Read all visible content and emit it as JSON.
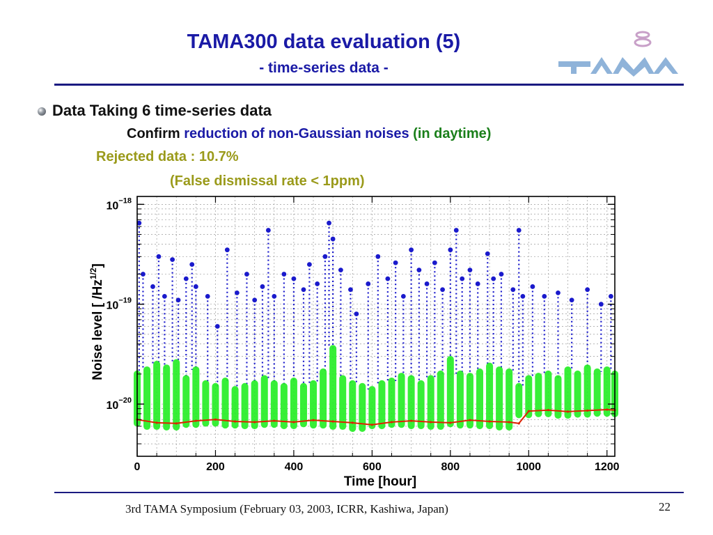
{
  "slide": {
    "title": "TAMA300 data evaluation (5)",
    "subtitle": "- time-series data -",
    "bullet": "Data Taking 6 time-series data",
    "line1": {
      "a": "Confirm ",
      "b": "reduction of non-Gaussian noises ",
      "c": "(in daytime)"
    },
    "line2": "Rejected data : 10.7%",
    "line3": "(False dismissal rate < 1ppm)",
    "footer": "3rd TAMA Symposium (February 03, 2003, ICRR, Kashiwa, Japan)",
    "page_number": "22"
  },
  "colors": {
    "title": "#1a1aa6",
    "accent_green": "#1a7f1a",
    "accent_olive": "#9a9a1a",
    "points_blue": "#1a1acc",
    "points_green": "#22ee22",
    "floor_red": "#dd2200",
    "logo_blue": "#8fb3d9",
    "logo_ring": "#c8a0c8"
  },
  "chart_data": {
    "type": "scatter",
    "title": "",
    "xlabel": "Time  [hour]",
    "ylabel": "Noise level  [ /Hz^1/2 ]",
    "ylabel_parts": {
      "pre": "Noise level  [ /Hz",
      "sup": "1/2",
      "post": "]"
    },
    "xlim": [
      0,
      1220
    ],
    "ylim": [
      3e-21,
      1.2e-18
    ],
    "yscale": "log",
    "grid": true,
    "x_ticks": [
      0,
      200,
      400,
      600,
      800,
      1000,
      1200
    ],
    "x_tick_labels": [
      "0",
      "200",
      "400",
      "600",
      "800",
      "1000",
      "1200"
    ],
    "y_ticks": [
      {
        "value": 1e-18,
        "exp": "−18"
      },
      {
        "value": 1e-19,
        "exp": "−19"
      },
      {
        "value": 1e-20,
        "exp": "−20"
      }
    ],
    "y_tick_base": "10",
    "series": [
      {
        "color": "#dd2200",
        "note_values": "lowest noise floor",
        "x": [
          0,
          50,
          100,
          150,
          200,
          250,
          300,
          350,
          400,
          450,
          500,
          550,
          600,
          650,
          700,
          750,
          800,
          850,
          900,
          950,
          975,
          1000,
          1050,
          1100,
          1150,
          1200,
          1220
        ],
        "y": [
          7e-21,
          6.5e-21,
          6.4e-21,
          6.8e-21,
          7e-21,
          6.7e-21,
          6.6e-21,
          6.8e-21,
          6.6e-21,
          6.9e-21,
          6.7e-21,
          6.5e-21,
          6.2e-21,
          6.6e-21,
          6.8e-21,
          6.6e-21,
          6.5e-21,
          6.9e-21,
          6.7e-21,
          6.6e-21,
          6.4e-21,
          8.5e-21,
          8.7e-21,
          8.4e-21,
          8.6e-21,
          8.8e-21,
          8.7e-21
        ]
      },
      {
        "color": "#22ee22",
        "x": [
          0,
          25,
          50,
          75,
          100,
          125,
          150,
          175,
          200,
          225,
          250,
          275,
          300,
          325,
          350,
          375,
          400,
          425,
          450,
          475,
          500,
          525,
          550,
          575,
          600,
          625,
          650,
          675,
          700,
          725,
          750,
          775,
          800,
          825,
          850,
          875,
          900,
          925,
          950,
          975,
          1000,
          1025,
          1050,
          1075,
          1100,
          1125,
          1150,
          1175,
          1200,
          1220
        ],
        "y": [
          2e-20,
          2.2e-20,
          2.5e-20,
          2.3e-20,
          2.6e-20,
          1.8e-20,
          2.2e-20,
          1.6e-20,
          1.5e-20,
          1.7e-20,
          1.4e-20,
          1.5e-20,
          1.6e-20,
          1.8e-20,
          1.6e-20,
          1.5e-20,
          1.7e-20,
          1.5e-20,
          1.6e-20,
          2.1e-20,
          3.6e-20,
          1.8e-20,
          1.6e-20,
          1.5e-20,
          1.4e-20,
          1.6e-20,
          1.7e-20,
          1.9e-20,
          1.8e-20,
          1.6e-20,
          1.8e-20,
          2e-20,
          2.8e-20,
          2e-20,
          1.9e-20,
          2.1e-20,
          2.4e-20,
          2.2e-20,
          2.1e-20,
          1.5e-20,
          1.8e-20,
          1.9e-20,
          2e-20,
          1.8e-20,
          2.2e-20,
          2e-20,
          2.3e-20,
          2.1e-20,
          2.2e-20,
          2e-20
        ]
      },
      {
        "color": "#1a1acc",
        "x": [
          5,
          15,
          40,
          55,
          70,
          90,
          105,
          125,
          140,
          150,
          180,
          205,
          230,
          255,
          280,
          300,
          320,
          335,
          350,
          375,
          400,
          425,
          440,
          460,
          480,
          490,
          500,
          520,
          545,
          560,
          590,
          615,
          640,
          660,
          680,
          700,
          720,
          740,
          760,
          780,
          800,
          815,
          830,
          850,
          870,
          895,
          910,
          930,
          960,
          975,
          985,
          1010,
          1040,
          1075,
          1110,
          1150,
          1185,
          1210
        ],
        "y": [
          6.5e-19,
          2e-19,
          1.5e-19,
          3e-19,
          1.2e-19,
          2.8e-19,
          1.1e-19,
          1.8e-19,
          2.5e-19,
          1.5e-19,
          1.2e-19,
          6e-20,
          3.5e-19,
          1.3e-19,
          2e-19,
          1.1e-19,
          1.5e-19,
          5.5e-19,
          1.2e-19,
          2e-19,
          1.8e-19,
          1.4e-19,
          2.5e-19,
          1.6e-19,
          3e-19,
          6.5e-19,
          4.5e-19,
          2.2e-19,
          1.4e-19,
          8e-20,
          1.6e-19,
          3e-19,
          1.8e-19,
          2.6e-19,
          1.2e-19,
          3.5e-19,
          2.2e-19,
          1.6e-19,
          2.6e-19,
          1.4e-19,
          3.5e-19,
          5.5e-19,
          1.8e-19,
          2.2e-19,
          1.6e-19,
          3.2e-19,
          1.8e-19,
          2e-19,
          1.4e-19,
          5.5e-19,
          1.2e-19,
          1.5e-19,
          1.2e-19,
          1.3e-19,
          1.1e-19,
          1.4e-19,
          1e-19,
          1.2e-19
        ]
      }
    ]
  }
}
